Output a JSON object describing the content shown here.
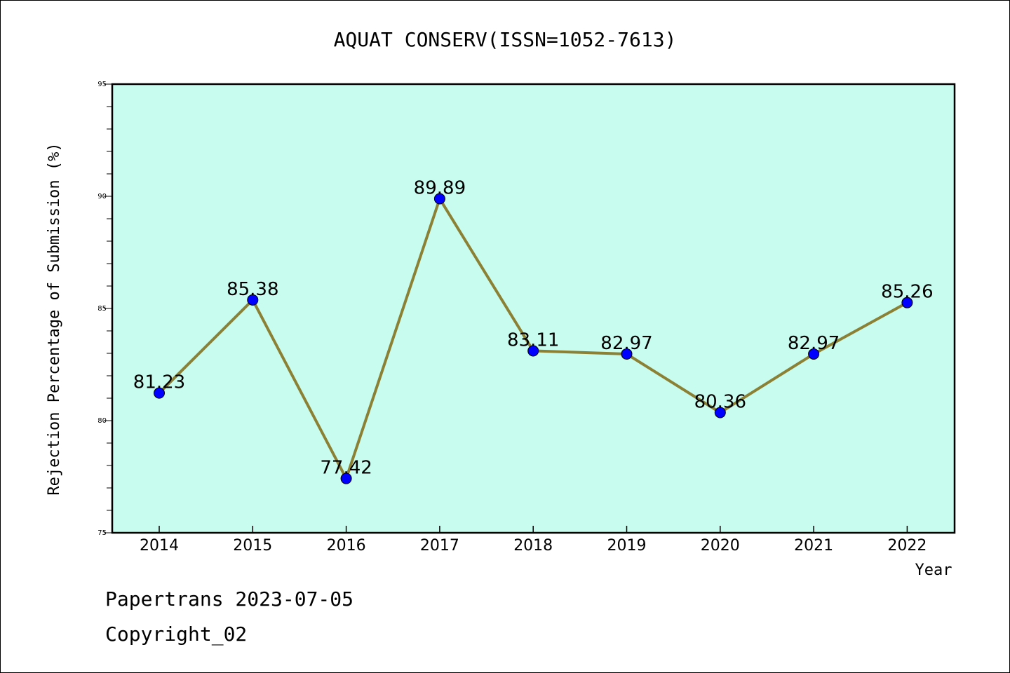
{
  "chart_data": {
    "type": "line",
    "title": "AQUAT CONSERV(ISSN=1052-7613)",
    "xlabel": "Year",
    "ylabel": "Rejection Percentage of Submission (%)",
    "categories": [
      "2014",
      "2015",
      "2016",
      "2017",
      "2018",
      "2019",
      "2020",
      "2021",
      "2022"
    ],
    "values": [
      81.23,
      85.38,
      77.42,
      89.89,
      83.11,
      82.97,
      80.36,
      82.97,
      85.26
    ],
    "data_labels": [
      "81.23",
      "85.38",
      "77.42",
      "89.89",
      "83.11",
      "82.97",
      "80.36",
      "82.97",
      "85.26"
    ],
    "ylim": [
      75,
      95
    ],
    "yticks": [
      75,
      80,
      85,
      90,
      95
    ],
    "grid": false,
    "legend": "none",
    "colors": {
      "plot_background": "#c8fcee",
      "line": "#8b8034",
      "marker": "#0000ff"
    }
  },
  "footer": {
    "line1": "Papertrans 2023-07-05",
    "line2": "Copyright_02"
  }
}
